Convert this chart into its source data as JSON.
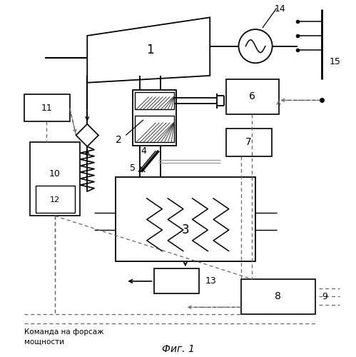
{
  "title": "Фиг. 1",
  "background": "#ffffff",
  "lc": "#000000",
  "dc": "#666666",
  "figsize": [
    4.99,
    5.0
  ],
  "dpi": 100
}
